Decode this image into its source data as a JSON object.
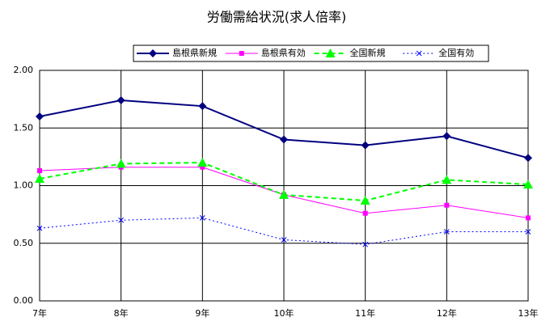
{
  "chart_data": {
    "type": "line",
    "title": "労働需給状況(求人倍率)",
    "categories": [
      "7年",
      "8年",
      "9年",
      "10年",
      "11年",
      "12年",
      "13年"
    ],
    "series": [
      {
        "name": "島根県新規",
        "color": "#000080",
        "marker": "diamond",
        "dash": "solid",
        "width": 2,
        "values": [
          1.6,
          1.74,
          1.69,
          1.4,
          1.35,
          1.43,
          1.24
        ]
      },
      {
        "name": "島根県有効",
        "color": "#ff00ff",
        "marker": "square",
        "dash": "solid",
        "width": 1,
        "values": [
          1.13,
          1.16,
          1.16,
          0.92,
          0.76,
          0.83,
          0.72
        ]
      },
      {
        "name": "全国新規",
        "color": "#00ff00",
        "marker": "triangle",
        "dash": "dashed",
        "width": 2,
        "values": [
          1.06,
          1.19,
          1.2,
          0.92,
          0.87,
          1.05,
          1.01
        ]
      },
      {
        "name": "全国有効",
        "color": "#0000ff",
        "marker": "x",
        "dash": "dotted",
        "width": 1,
        "values": [
          0.63,
          0.7,
          0.72,
          0.53,
          0.49,
          0.6,
          0.6
        ]
      }
    ],
    "ylim": [
      0,
      2
    ],
    "yticks": [
      {
        "value": 0,
        "label": "0.00"
      },
      {
        "value": 0.5,
        "label": "0.50"
      },
      {
        "value": 1,
        "label": "1.00"
      },
      {
        "value": 1.5,
        "label": "1.50"
      },
      {
        "value": 2,
        "label": "2.00"
      }
    ],
    "grid": true,
    "legend": "top"
  }
}
